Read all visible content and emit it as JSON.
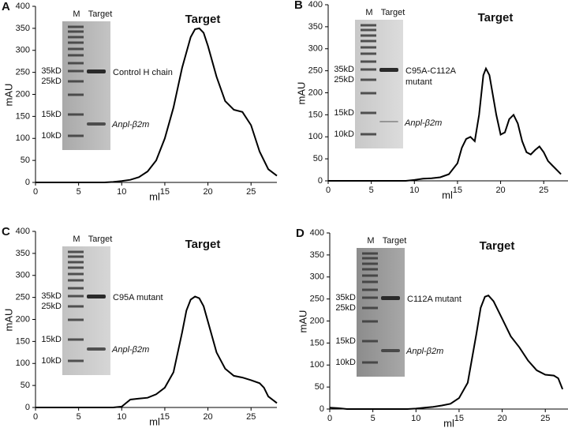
{
  "chart_data": [
    {
      "type": "line",
      "panel": "A",
      "title": "Target",
      "xlabel": "ml",
      "ylabel": "mAU",
      "xlim": [
        0,
        28
      ],
      "xticks": [
        0,
        5,
        10,
        15,
        20,
        25
      ],
      "ylim": [
        0,
        400
      ],
      "yticks": [
        0,
        50,
        100,
        150,
        200,
        250,
        300,
        350,
        400
      ],
      "gel_lanes": [
        "M",
        "Target"
      ],
      "markers": [
        "35kD",
        "25kD",
        "15kD",
        "10kD"
      ],
      "protein_label": [
        "Control H chain"
      ],
      "b2m_label": "Anpl-β2m",
      "series": [
        {
          "color": "#000000",
          "x": [
            0,
            8,
            9,
            10,
            11,
            12,
            13,
            14,
            15,
            16,
            17,
            18,
            18.5,
            19,
            19.5,
            20,
            21,
            22,
            23,
            24,
            25,
            26,
            27,
            28
          ],
          "values": [
            0,
            0,
            1,
            3,
            6,
            12,
            25,
            50,
            100,
            170,
            260,
            330,
            348,
            350,
            340,
            310,
            240,
            185,
            165,
            160,
            130,
            70,
            30,
            15
          ]
        }
      ]
    },
    {
      "type": "line",
      "panel": "B",
      "title": "Target",
      "xlabel": "ml",
      "ylabel": "mAU",
      "xlim": [
        0,
        28
      ],
      "xticks": [
        0,
        5,
        10,
        15,
        20,
        25
      ],
      "ylim": [
        0,
        400
      ],
      "yticks": [
        0,
        50,
        100,
        150,
        200,
        250,
        300,
        350,
        400
      ],
      "gel_lanes": [
        "M",
        "Target"
      ],
      "markers": [
        "35kD",
        "25kD",
        "15kD",
        "10kD"
      ],
      "protein_label": [
        "C95A-C112A",
        "mutant"
      ],
      "b2m_label": "Anpl-β2m",
      "series": [
        {
          "color": "#000000",
          "x": [
            0,
            9,
            10,
            11,
            12,
            13,
            14,
            15,
            15.5,
            16,
            16.5,
            17,
            17.5,
            18,
            18.3,
            18.7,
            19.5,
            20,
            20.5,
            21,
            21.5,
            22,
            22.5,
            23,
            23.5,
            24,
            24.5,
            25,
            25.5,
            26,
            27
          ],
          "values": [
            0,
            0,
            2,
            5,
            6,
            8,
            15,
            40,
            75,
            95,
            100,
            90,
            150,
            240,
            255,
            240,
            150,
            105,
            110,
            140,
            150,
            130,
            90,
            65,
            60,
            70,
            78,
            65,
            45,
            35,
            15
          ]
        }
      ]
    },
    {
      "type": "line",
      "panel": "C",
      "title": "Target",
      "xlabel": "ml",
      "ylabel": "mAU",
      "xlim": [
        0,
        28
      ],
      "xticks": [
        0,
        5,
        10,
        15,
        20,
        25
      ],
      "ylim": [
        0,
        400
      ],
      "yticks": [
        0,
        50,
        100,
        150,
        200,
        250,
        300,
        350,
        400
      ],
      "gel_lanes": [
        "M",
        "Target"
      ],
      "markers": [
        "35kD",
        "25kD",
        "15kD",
        "10kD"
      ],
      "protein_label": [
        "C95A mutant"
      ],
      "b2m_label": "Anpl-β2m",
      "series": [
        {
          "color": "#000000",
          "x": [
            0,
            9,
            10,
            10.5,
            11,
            12,
            13,
            14,
            15,
            16,
            17,
            17.5,
            18,
            18.5,
            19,
            19.5,
            20,
            21,
            22,
            23,
            24,
            25,
            26,
            26.5,
            27,
            28
          ],
          "values": [
            0,
            0,
            2,
            10,
            18,
            20,
            22,
            30,
            45,
            80,
            170,
            220,
            245,
            252,
            248,
            230,
            195,
            125,
            88,
            72,
            68,
            62,
            55,
            45,
            25,
            10
          ]
        }
      ]
    },
    {
      "type": "line",
      "panel": "D",
      "title": "Target",
      "xlabel": "ml",
      "ylabel": "mAU",
      "xlim": [
        0,
        28
      ],
      "xticks": [
        0,
        5,
        10,
        15,
        20,
        25
      ],
      "ylim": [
        0,
        400
      ],
      "yticks": [
        0,
        50,
        100,
        150,
        200,
        250,
        300,
        350,
        400
      ],
      "gel_lanes": [
        "M",
        "Target"
      ],
      "markers": [
        "35kD",
        "25kD",
        "15kD",
        "10kD"
      ],
      "protein_label": [
        "C112A mutant"
      ],
      "b2m_label": "Anpl-β2m",
      "series": [
        {
          "color": "#000000",
          "x": [
            0,
            1,
            2,
            9,
            10,
            11,
            12,
            13,
            14,
            15,
            16,
            17,
            17.5,
            18,
            18.4,
            19,
            20,
            21,
            22,
            23,
            24,
            25,
            26,
            26.5,
            27
          ],
          "values": [
            3,
            2,
            0,
            0,
            1,
            3,
            5,
            8,
            12,
            25,
            60,
            170,
            230,
            255,
            258,
            245,
            205,
            165,
            140,
            110,
            88,
            78,
            76,
            70,
            45
          ]
        }
      ]
    }
  ]
}
